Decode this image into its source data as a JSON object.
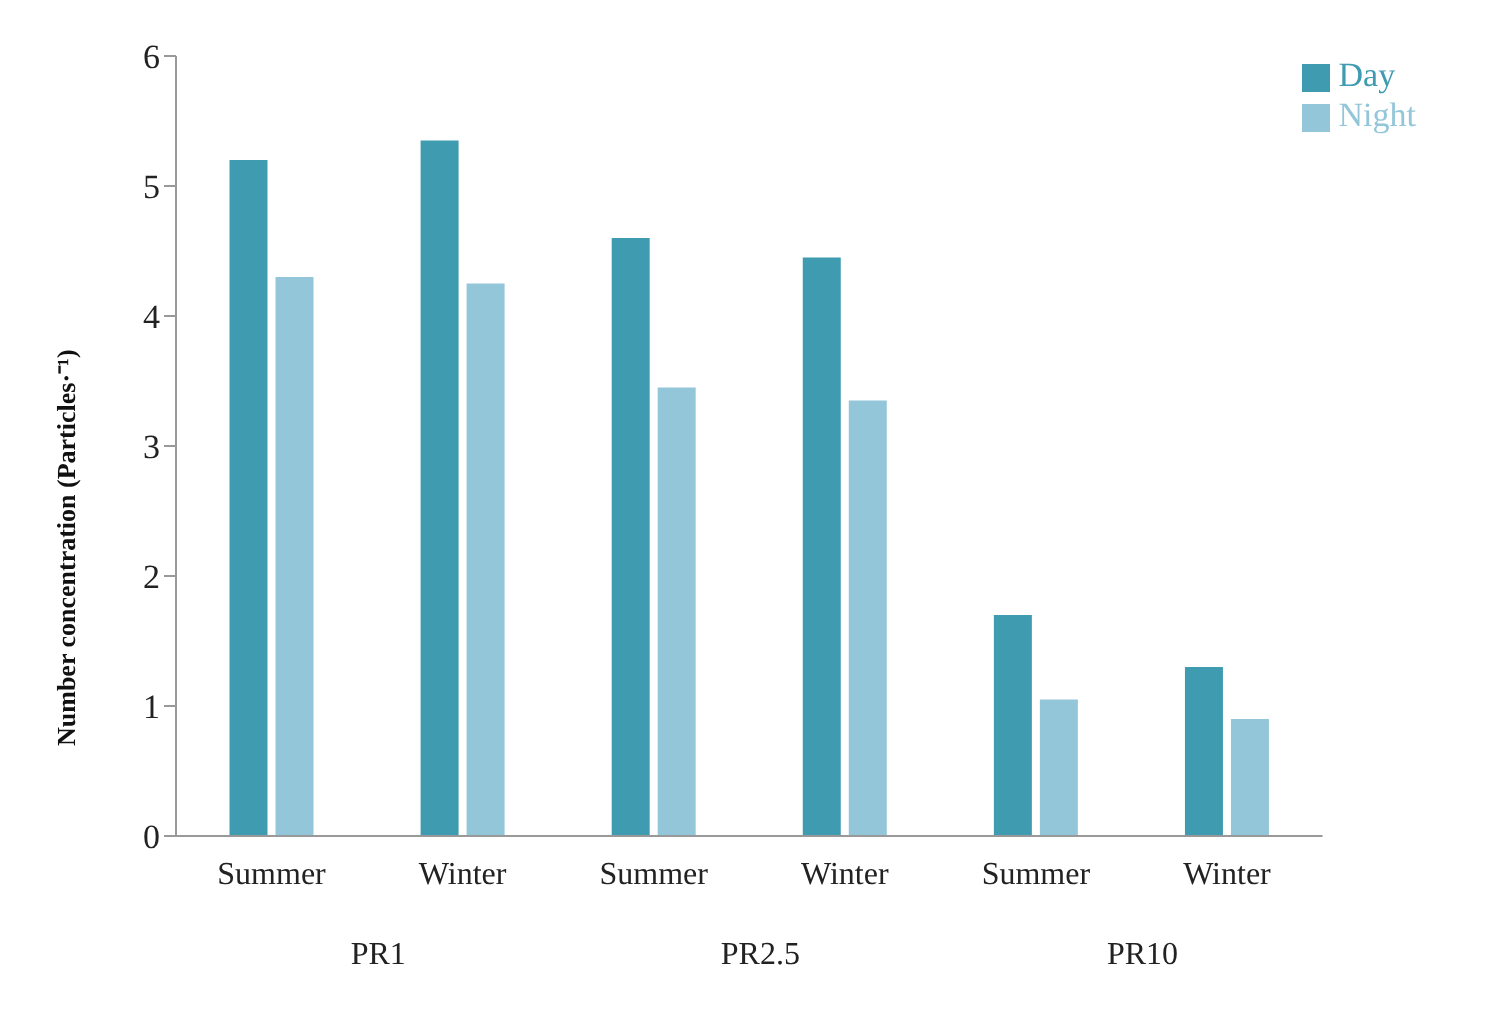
{
  "chart_data": {
    "type": "bar",
    "ylabel": "Number concentration (Particles·⁻¹)",
    "categories": [
      "Summer",
      "Winter",
      "Summer",
      "Winter",
      "Summer",
      "Winter"
    ],
    "annotations": [
      "PR1",
      "PR2.5",
      "PR10"
    ],
    "series": [
      {
        "name": "Day",
        "color": "#3f9bb0",
        "values": [
          5.2,
          5.35,
          4.6,
          4.45,
          1.7,
          1.3
        ]
      },
      {
        "name": "Night",
        "color": "#93c6d9",
        "values": [
          4.3,
          4.25,
          3.45,
          3.35,
          1.05,
          0.9
        ]
      }
    ],
    "ylim": [
      0,
      6
    ],
    "yticks": [
      0,
      1,
      2,
      3,
      4,
      5,
      6
    ],
    "grid": false,
    "legend": "top right"
  }
}
